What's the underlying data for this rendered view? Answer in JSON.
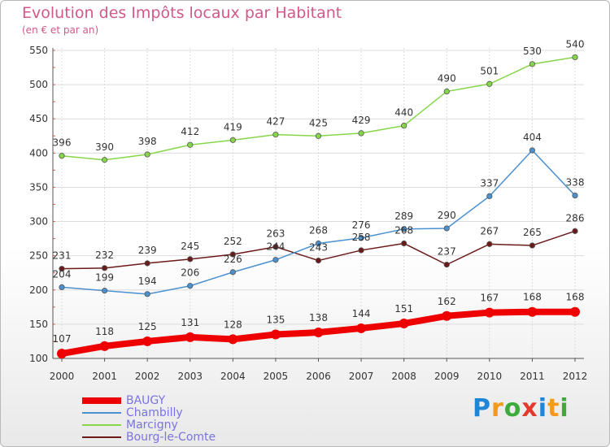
{
  "title": "Evolution des Impôts locaux par Habitant",
  "subtitle": "(en € et par an)",
  "logo": {
    "text": "Proxiti",
    "letters": [
      {
        "ch": "P",
        "color": "#1f86d6"
      },
      {
        "ch": "r",
        "color": "#f39a1c"
      },
      {
        "ch": "o",
        "color": "#3cab3c"
      },
      {
        "ch": "x",
        "color": "#e23b2e"
      },
      {
        "ch": "i",
        "color": "#1f86d6"
      },
      {
        "ch": "t",
        "color": "#f39a1c"
      },
      {
        "ch": "i",
        "color": "#3cab3c"
      }
    ]
  },
  "chart_data": {
    "type": "line",
    "title": "Evolution des Impôts locaux par Habitant",
    "subtitle": "(en € et par an)",
    "x": [
      "2000",
      "2001",
      "2002",
      "2003",
      "2004",
      "2005",
      "2006",
      "2007",
      "2008",
      "2009",
      "2010",
      "2011",
      "2012"
    ],
    "ylim": [
      100,
      550
    ],
    "yticks": [
      100,
      150,
      200,
      250,
      300,
      350,
      400,
      450,
      500,
      550
    ],
    "grid": true,
    "legend_position": "bottom-left",
    "series": [
      {
        "name": "BAUGY",
        "color": "#ee0000",
        "values": [
          107,
          118,
          125,
          131,
          128,
          135,
          138,
          144,
          151,
          162,
          167,
          168,
          168
        ]
      },
      {
        "name": "Chambilly",
        "color": "#4b90cf",
        "values": [
          204,
          199,
          194,
          206,
          226,
          244,
          268,
          276,
          289,
          290,
          337,
          404,
          338
        ]
      },
      {
        "name": "Marcigny",
        "color": "#86d64a",
        "values": [
          396,
          390,
          398,
          412,
          419,
          427,
          425,
          429,
          440,
          490,
          501,
          530,
          540
        ]
      },
      {
        "name": "Bourg-le-Comte",
        "color": "#6b1a1a",
        "values": [
          231,
          232,
          239,
          245,
          252,
          263,
          243,
          258,
          268,
          237,
          267,
          265,
          286
        ]
      }
    ]
  }
}
